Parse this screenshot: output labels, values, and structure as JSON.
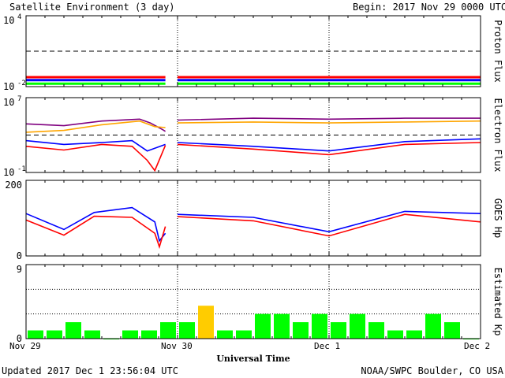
{
  "header": {
    "title": "Satellite Environment (3 day)",
    "begin": "Begin:  2017 Nov 29 0000 UTC"
  },
  "footer": {
    "updated": "Updated 2017 Dec  1 23:56:04 UTC",
    "credit": "NOAA/SWPC Boulder, CO USA"
  },
  "chart_data": [
    {
      "type": "line",
      "panel": "proton",
      "ylabel": "Proton Flux",
      "scale": "log",
      "ylim_exp": [
        -2,
        4
      ],
      "tick_labels": [
        "10",
        "4",
        "10",
        "-2"
      ],
      "threshold_exp": 1,
      "series": [
        {
          "color": "#ff0000",
          "values": [
            [
              0,
              -1.2
            ],
            [
              0.92,
              -1.2
            ]
          ],
          "values_b": [
            [
              1.0,
              -1.2
            ],
            [
              3.0,
              -1.2
            ]
          ]
        },
        {
          "color": "#0000ff",
          "values": [
            [
              0,
              -1.45
            ],
            [
              0.92,
              -1.45
            ]
          ],
          "values_b": [
            [
              1.0,
              -1.45
            ],
            [
              3.0,
              -1.45
            ]
          ]
        },
        {
          "color": "#00ff00",
          "values": [
            [
              0,
              -1.75
            ],
            [
              0.92,
              -1.75
            ]
          ],
          "values_b": [
            [
              1.0,
              -1.75
            ],
            [
              3.0,
              -1.75
            ]
          ]
        }
      ]
    },
    {
      "type": "line",
      "panel": "electron",
      "ylabel": "Electron Flux",
      "scale": "log",
      "ylim_exp": [
        -1,
        7
      ],
      "tick_labels": [
        "10",
        "7",
        "10",
        "-1"
      ],
      "threshold_exp": 3,
      "series": [
        {
          "color": "#800080",
          "values": [
            [
              0,
              4.2
            ],
            [
              0.25,
              4.0
            ],
            [
              0.5,
              4.5
            ],
            [
              0.75,
              4.7
            ],
            [
              0.82,
              4.3
            ],
            [
              0.9,
              3.6
            ],
            [
              0.92,
              3.4
            ]
          ],
          "values_b": [
            [
              1.0,
              4.6
            ],
            [
              1.5,
              4.8
            ],
            [
              2.0,
              4.7
            ],
            [
              2.5,
              4.8
            ],
            [
              3.0,
              4.8
            ]
          ]
        },
        {
          "color": "#ffa500",
          "values": [
            [
              0,
              3.3
            ],
            [
              0.25,
              3.5
            ],
            [
              0.5,
              4.1
            ],
            [
              0.75,
              4.5
            ],
            [
              0.85,
              3.9
            ],
            [
              0.92,
              3.8
            ]
          ],
          "values_b": [
            [
              1.0,
              4.3
            ],
            [
              1.5,
              4.4
            ],
            [
              2.0,
              4.3
            ],
            [
              2.5,
              4.4
            ],
            [
              3.0,
              4.5
            ]
          ]
        },
        {
          "color": "#0000ff",
          "values": [
            [
              0,
              2.4
            ],
            [
              0.25,
              2.0
            ],
            [
              0.5,
              2.2
            ],
            [
              0.7,
              2.4
            ],
            [
              0.8,
              1.3
            ],
            [
              0.92,
              2.0
            ]
          ],
          "values_b": [
            [
              1.0,
              2.2
            ],
            [
              1.5,
              1.8
            ],
            [
              2.0,
              1.3
            ],
            [
              2.5,
              2.3
            ],
            [
              3.0,
              2.6
            ]
          ]
        },
        {
          "color": "#ff0000",
          "values": [
            [
              0,
              1.8
            ],
            [
              0.25,
              1.4
            ],
            [
              0.5,
              2.0
            ],
            [
              0.7,
              1.8
            ],
            [
              0.8,
              0.3
            ],
            [
              0.85,
              -0.8
            ],
            [
              0.92,
              1.9
            ]
          ],
          "values_b": [
            [
              1.0,
              2.0
            ],
            [
              1.5,
              1.5
            ],
            [
              2.0,
              0.9
            ],
            [
              2.5,
              2.0
            ],
            [
              3.0,
              2.2
            ]
          ]
        }
      ]
    },
    {
      "type": "line",
      "panel": "goes",
      "ylabel": "GOES Hp",
      "ylim": [
        0,
        200
      ],
      "tick_labels": [
        "200",
        "0"
      ],
      "series": [
        {
          "color": "#0000ff",
          "values": [
            [
              0,
              112
            ],
            [
              0.25,
              70
            ],
            [
              0.45,
              115
            ],
            [
              0.7,
              128
            ],
            [
              0.85,
              90
            ],
            [
              0.88,
              40
            ],
            [
              0.92,
              60
            ]
          ],
          "values_b": [
            [
              1.0,
              110
            ],
            [
              1.5,
              102
            ],
            [
              2.0,
              64
            ],
            [
              2.5,
              118
            ],
            [
              3.0,
              112
            ]
          ]
        },
        {
          "color": "#ff0000",
          "values": [
            [
              0,
              95
            ],
            [
              0.25,
              55
            ],
            [
              0.45,
              105
            ],
            [
              0.7,
              102
            ],
            [
              0.85,
              60
            ],
            [
              0.88,
              24
            ],
            [
              0.92,
              78
            ]
          ],
          "values_b": [
            [
              1.0,
              104
            ],
            [
              1.5,
              93
            ],
            [
              2.0,
              53
            ],
            [
              2.5,
              110
            ],
            [
              3.0,
              90
            ]
          ]
        }
      ]
    },
    {
      "type": "bar",
      "panel": "kp",
      "ylabel": "Estimated Kp",
      "ylim": [
        0,
        9
      ],
      "tick_labels": [
        "9",
        "0"
      ],
      "values": [
        1,
        1,
        2,
        1,
        0,
        1,
        1,
        2,
        2,
        4,
        1,
        1,
        3,
        3,
        2,
        3,
        2,
        3,
        2,
        1,
        1,
        3,
        2,
        0
      ],
      "colors": [
        "#00ff00",
        "#00ff00",
        "#00ff00",
        "#00ff00",
        "#00ff00",
        "#00ff00",
        "#00ff00",
        "#00ff00",
        "#00ff00",
        "#ffcc00",
        "#00ff00",
        "#00ff00",
        "#00ff00",
        "#00ff00",
        "#00ff00",
        "#00ff00",
        "#00ff00",
        "#00ff00",
        "#00ff00",
        "#00ff00",
        "#00ff00",
        "#00ff00",
        "#00ff00",
        "#00ff00"
      ]
    }
  ],
  "xaxis": {
    "tick_labels": [
      "Nov 29",
      "Nov 30",
      "Dec 1",
      "Dec 2"
    ],
    "label": "Universal Time"
  }
}
